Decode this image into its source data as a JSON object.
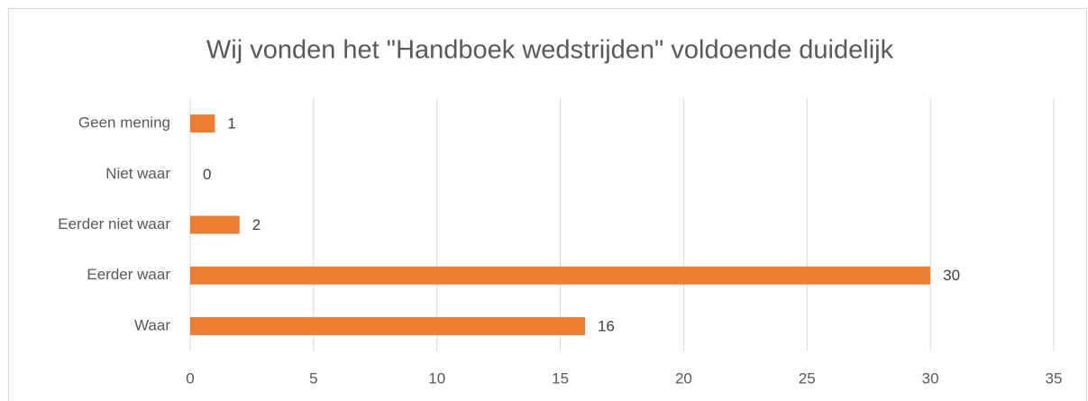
{
  "chart_data": {
    "type": "bar",
    "orientation": "horizontal",
    "title": "Wij vonden het \"Handboek wedstrijden\" voldoende duidelijk",
    "categories": [
      "Geen mening",
      "Niet waar",
      "Eerder niet waar",
      "Eerder waar",
      "Waar"
    ],
    "values": [
      1,
      0,
      2,
      30,
      16
    ],
    "color": "#ed7d31",
    "xlim": [
      0,
      35
    ],
    "xticks": [
      0,
      5,
      10,
      15,
      20,
      25,
      30,
      35
    ],
    "grid": true
  }
}
